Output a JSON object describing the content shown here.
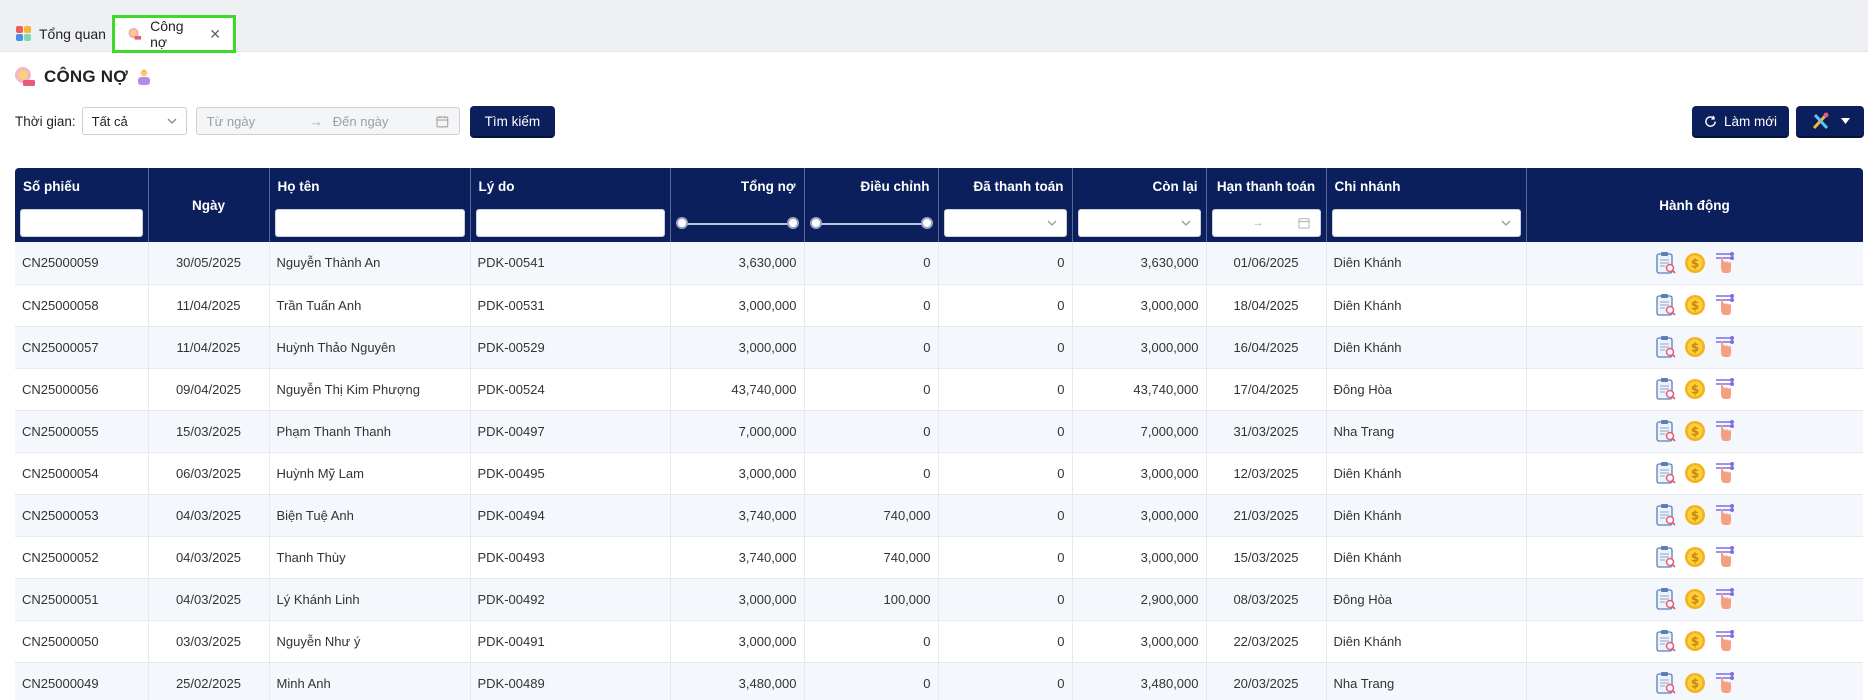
{
  "tabs": [
    {
      "label": "Tổng quan",
      "icon": "dashboard-icon",
      "active": false
    },
    {
      "label": "Công nợ",
      "icon": "debt-icon",
      "active": true
    }
  ],
  "page": {
    "title": "CÔNG NỢ"
  },
  "filters": {
    "time_label": "Thời gian:",
    "time_value": "Tất cả",
    "from_placeholder": "Từ ngày",
    "to_placeholder": "Đến ngày",
    "search_label": "Tìm kiếm"
  },
  "toolbar": {
    "refresh_label": "Làm mới"
  },
  "columns": {
    "so_phieu": "Số phiếu",
    "ngay": "Ngày",
    "ho_ten": "Họ tên",
    "ly_do": "Lý do",
    "tong_no": "Tổng nợ",
    "dieu_chinh": "Điều chỉnh",
    "da_thanh_toan": "Đã thanh toán",
    "con_lai": "Còn lại",
    "han_thanh_toan": "Hạn thanh toán",
    "chi_nhanh": "Chi nhánh",
    "hanh_dong": "Hành động"
  },
  "rows": [
    {
      "so_phieu": "CN25000059",
      "ngay": "30/05/2025",
      "ho_ten": "Nguyễn Thành An",
      "ly_do": "PDK-00541",
      "tong_no": "3,630,000",
      "dieu_chinh": "0",
      "da_thanh_toan": "0",
      "con_lai": "3,630,000",
      "han": "01/06/2025",
      "chi_nhanh": "Diên Khánh"
    },
    {
      "so_phieu": "CN25000058",
      "ngay": "11/04/2025",
      "ho_ten": "Trần Tuấn Anh",
      "ly_do": "PDK-00531",
      "tong_no": "3,000,000",
      "dieu_chinh": "0",
      "da_thanh_toan": "0",
      "con_lai": "3,000,000",
      "han": "18/04/2025",
      "chi_nhanh": "Diên Khánh"
    },
    {
      "so_phieu": "CN25000057",
      "ngay": "11/04/2025",
      "ho_ten": "Huỳnh Thảo Nguyên",
      "ly_do": "PDK-00529",
      "tong_no": "3,000,000",
      "dieu_chinh": "0",
      "da_thanh_toan": "0",
      "con_lai": "3,000,000",
      "han": "16/04/2025",
      "chi_nhanh": "Diên Khánh"
    },
    {
      "so_phieu": "CN25000056",
      "ngay": "09/04/2025",
      "ho_ten": "Nguyễn Thị Kim Phượng",
      "ly_do": "PDK-00524",
      "tong_no": "43,740,000",
      "dieu_chinh": "0",
      "da_thanh_toan": "0",
      "con_lai": "43,740,000",
      "han": "17/04/2025",
      "chi_nhanh": "Đông Hòa"
    },
    {
      "so_phieu": "CN25000055",
      "ngay": "15/03/2025",
      "ho_ten": "Phạm Thanh Thanh",
      "ly_do": "PDK-00497",
      "tong_no": "7,000,000",
      "dieu_chinh": "0",
      "da_thanh_toan": "0",
      "con_lai": "7,000,000",
      "han": "31/03/2025",
      "chi_nhanh": "Nha Trang"
    },
    {
      "so_phieu": "CN25000054",
      "ngay": "06/03/2025",
      "ho_ten": "Huỳnh Mỹ Lam",
      "ly_do": "PDK-00495",
      "tong_no": "3,000,000",
      "dieu_chinh": "0",
      "da_thanh_toan": "0",
      "con_lai": "3,000,000",
      "han": "12/03/2025",
      "chi_nhanh": "Diên Khánh"
    },
    {
      "so_phieu": "CN25000053",
      "ngay": "04/03/2025",
      "ho_ten": "Biện Tuệ Anh",
      "ly_do": "PDK-00494",
      "tong_no": "3,740,000",
      "dieu_chinh": "740,000",
      "da_thanh_toan": "0",
      "con_lai": "3,000,000",
      "han": "21/03/2025",
      "chi_nhanh": "Diên Khánh"
    },
    {
      "so_phieu": "CN25000052",
      "ngay": "04/03/2025",
      "ho_ten": "Thanh Thùy",
      "ly_do": "PDK-00493",
      "tong_no": "3,740,000",
      "dieu_chinh": "740,000",
      "da_thanh_toan": "0",
      "con_lai": "3,000,000",
      "han": "15/03/2025",
      "chi_nhanh": "Diên Khánh"
    },
    {
      "so_phieu": "CN25000051",
      "ngay": "04/03/2025",
      "ho_ten": "Lý Khánh Linh",
      "ly_do": "PDK-00492",
      "tong_no": "3,000,000",
      "dieu_chinh": "100,000",
      "da_thanh_toan": "0",
      "con_lai": "2,900,000",
      "han": "08/03/2025",
      "chi_nhanh": "Đông Hòa"
    },
    {
      "so_phieu": "CN25000050",
      "ngay": "03/03/2025",
      "ho_ten": "Nguyễn Như ý",
      "ly_do": "PDK-00491",
      "tong_no": "3,000,000",
      "dieu_chinh": "0",
      "da_thanh_toan": "0",
      "con_lai": "3,000,000",
      "han": "22/03/2025",
      "chi_nhanh": "Diên Khánh"
    },
    {
      "so_phieu": "CN25000049",
      "ngay": "25/02/2025",
      "ho_ten": "Minh Anh",
      "ly_do": "PDK-00489",
      "tong_no": "3,480,000",
      "dieu_chinh": "0",
      "da_thanh_toan": "0",
      "con_lai": "3,480,000",
      "han": "20/03/2025",
      "chi_nhanh": "Nha Trang"
    }
  ],
  "colors": {
    "header": "#0b1f5c",
    "active_tab_border": "#3fd92a",
    "row_alt": "#f4f7fb"
  }
}
